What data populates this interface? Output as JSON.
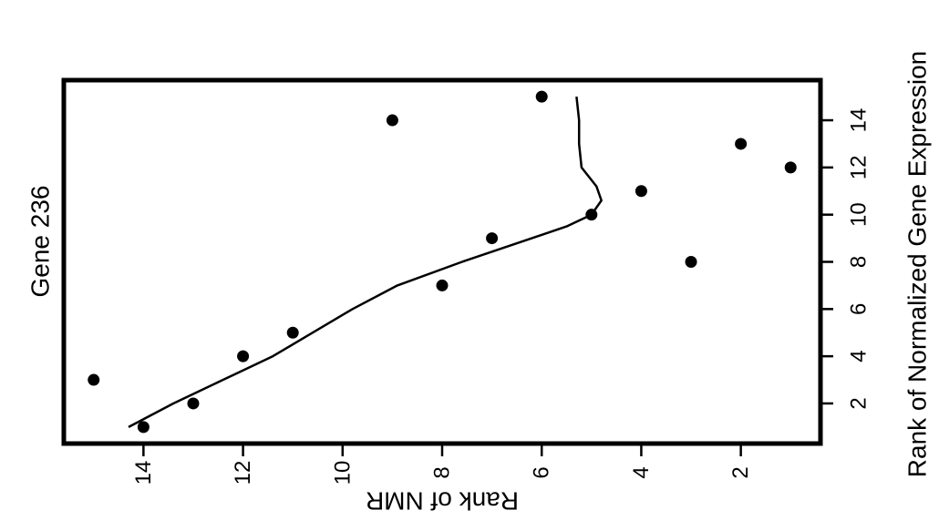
{
  "chart_data": {
    "type": "scatter",
    "title": "Gene 236",
    "xlabel": "Rank of Normalized Gene Expression",
    "ylabel": "Rank of NMR",
    "xlim": [
      0.3,
      15.7
    ],
    "ylim": [
      0.4,
      15.6
    ],
    "x_ticks": [
      2,
      4,
      6,
      8,
      10,
      12,
      14
    ],
    "y_ticks": [
      2,
      4,
      6,
      8,
      10,
      12,
      14
    ],
    "grid": false,
    "legend": "none",
    "colors": {
      "points": "#000000",
      "line": "#000000",
      "frame": "#000000"
    },
    "points": [
      {
        "x": 1,
        "y": 14
      },
      {
        "x": 2,
        "y": 13
      },
      {
        "x": 3,
        "y": 15
      },
      {
        "x": 4,
        "y": 12
      },
      {
        "x": 5,
        "y": 11
      },
      {
        "x": 7,
        "y": 8
      },
      {
        "x": 8,
        "y": 3
      },
      {
        "x": 9,
        "y": 7
      },
      {
        "x": 10,
        "y": 5
      },
      {
        "x": 11,
        "y": 4
      },
      {
        "x": 12,
        "y": 1
      },
      {
        "x": 13,
        "y": 2
      },
      {
        "x": 14,
        "y": 9
      },
      {
        "x": 15,
        "y": 6
      }
    ],
    "smooth_line": [
      {
        "x": 1.0,
        "y": 14.3
      },
      {
        "x": 2.0,
        "y": 13.4
      },
      {
        "x": 3.0,
        "y": 12.4
      },
      {
        "x": 4.0,
        "y": 11.4
      },
      {
        "x": 5.0,
        "y": 10.6
      },
      {
        "x": 6.0,
        "y": 9.8
      },
      {
        "x": 7.0,
        "y": 8.9
      },
      {
        "x": 8.0,
        "y": 7.6
      },
      {
        "x": 9.0,
        "y": 6.2
      },
      {
        "x": 9.5,
        "y": 5.5
      },
      {
        "x": 10.0,
        "y": 5.0
      },
      {
        "x": 10.6,
        "y": 4.8
      },
      {
        "x": 11.2,
        "y": 4.9
      },
      {
        "x": 12.0,
        "y": 5.2
      },
      {
        "x": 13.0,
        "y": 5.25
      },
      {
        "x": 14.0,
        "y": 5.25
      },
      {
        "x": 15.0,
        "y": 5.3
      }
    ]
  }
}
